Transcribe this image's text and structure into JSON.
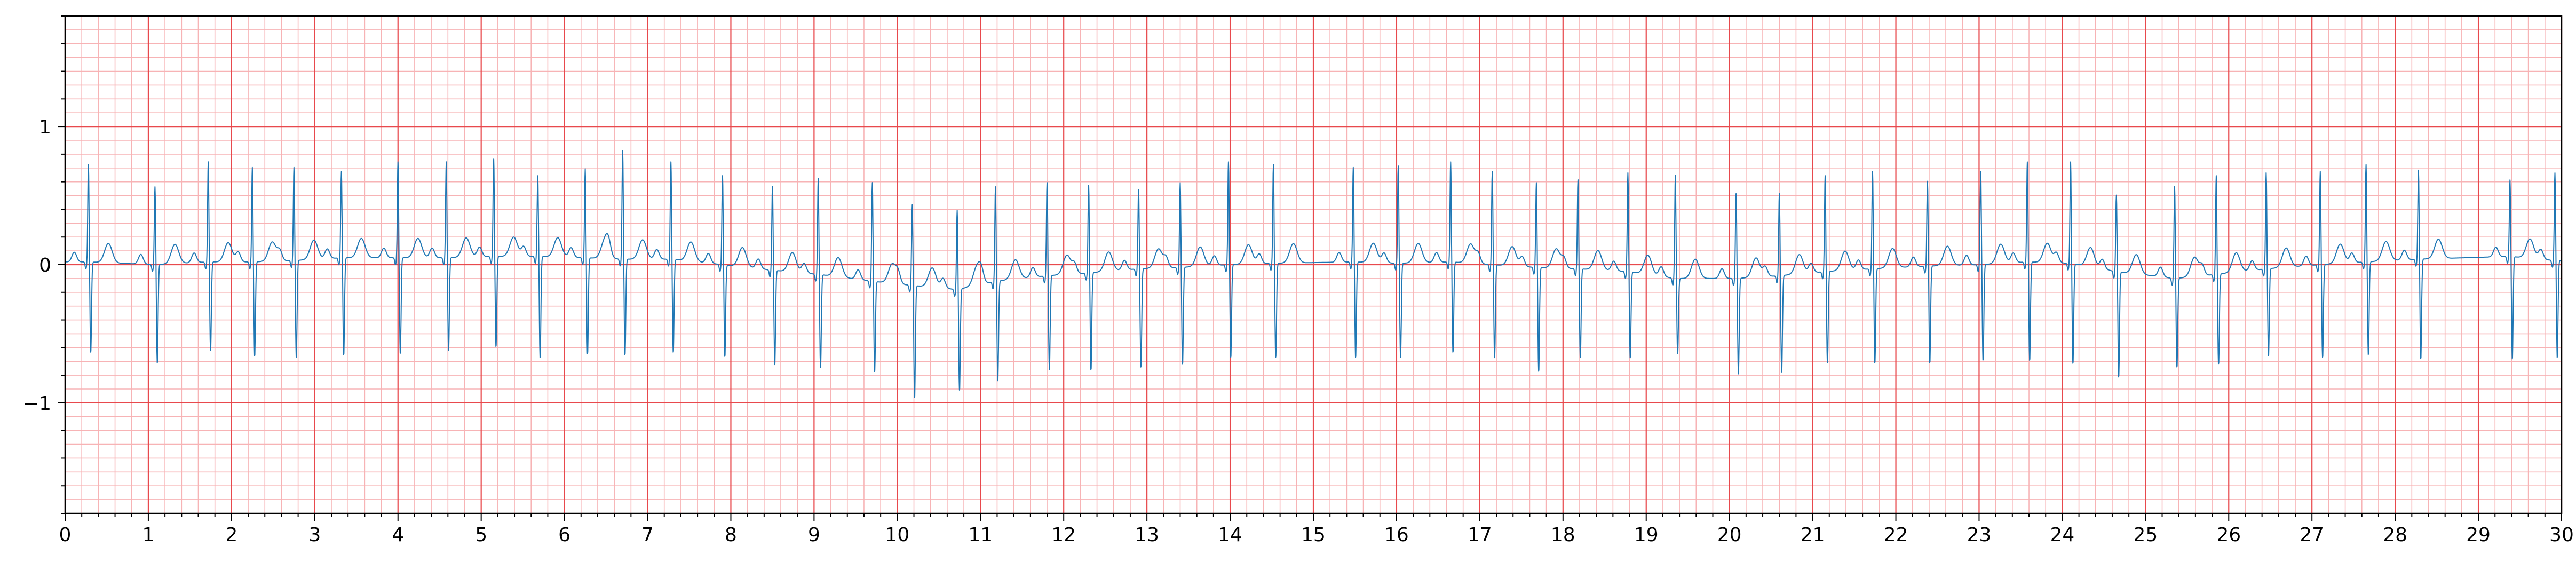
{
  "chart_data": {
    "type": "line",
    "title": "",
    "xlabel": "",
    "ylabel": "",
    "xlim": [
      0,
      30
    ],
    "ylim": [
      -1.8,
      1.8
    ],
    "grid": true,
    "grid_style": "ecg-paper",
    "colors": {
      "trace": "#1f77b4",
      "major_grid": "#e8494d",
      "minor_grid": "#f7b3b5",
      "axis": "#000000"
    },
    "x_ticks": [
      0,
      1,
      2,
      3,
      4,
      5,
      6,
      7,
      8,
      9,
      10,
      11,
      12,
      13,
      14,
      15,
      16,
      17,
      18,
      19,
      20,
      21,
      22,
      23,
      24,
      25,
      26,
      27,
      28,
      29,
      30
    ],
    "x_tick_labels": [
      "0",
      "1",
      "2",
      "3",
      "4",
      "5",
      "6",
      "7",
      "8",
      "9",
      "10",
      "11",
      "12",
      "13",
      "14",
      "15",
      "16",
      "17",
      "18",
      "19",
      "20",
      "21",
      "22",
      "23",
      "24",
      "25",
      "26",
      "27",
      "28",
      "29",
      "30"
    ],
    "y_ticks": [
      -1,
      0,
      1
    ],
    "y_tick_labels": [
      "−1",
      "0",
      "1"
    ],
    "series": [
      {
        "beats": [
          {
            "t": 0.28,
            "r": 0.68,
            "s": -0.64,
            "b": 0.02
          },
          {
            "t": 1.08,
            "r": 0.52,
            "s": -0.72,
            "b": 0.0
          },
          {
            "t": 1.72,
            "r": 0.7,
            "s": -0.63,
            "b": 0.02
          },
          {
            "t": 2.25,
            "r": 0.66,
            "s": -0.67,
            "b": 0.02
          },
          {
            "t": 2.75,
            "r": 0.66,
            "s": -0.68,
            "b": 0.03
          },
          {
            "t": 3.32,
            "r": 0.63,
            "s": -0.66,
            "b": 0.05
          },
          {
            "t": 4.0,
            "r": 0.7,
            "s": -0.65,
            "b": 0.05
          },
          {
            "t": 4.58,
            "r": 0.7,
            "s": -0.63,
            "b": 0.05
          },
          {
            "t": 5.15,
            "r": 0.72,
            "s": -0.6,
            "b": 0.06
          },
          {
            "t": 5.68,
            "r": 0.6,
            "s": -0.68,
            "b": 0.06
          },
          {
            "t": 6.25,
            "r": 0.65,
            "s": -0.65,
            "b": 0.05
          },
          {
            "t": 6.7,
            "r": 0.78,
            "s": -0.66,
            "b": 0.04
          },
          {
            "t": 7.28,
            "r": 0.7,
            "s": -0.64,
            "b": 0.04
          },
          {
            "t": 7.9,
            "r": 0.6,
            "s": -0.67,
            "b": 0.0
          },
          {
            "t": 8.5,
            "r": 0.52,
            "s": -0.73,
            "b": -0.04
          },
          {
            "t": 9.05,
            "r": 0.58,
            "s": -0.75,
            "b": -0.07
          },
          {
            "t": 9.7,
            "r": 0.55,
            "s": -0.78,
            "b": -0.12
          },
          {
            "t": 10.18,
            "r": 0.39,
            "s": -0.97,
            "b": -0.15
          },
          {
            "t": 10.72,
            "r": 0.35,
            "s": -0.92,
            "b": -0.18
          },
          {
            "t": 11.18,
            "r": 0.52,
            "s": -0.85,
            "b": -0.12
          },
          {
            "t": 11.8,
            "r": 0.55,
            "s": -0.77,
            "b": -0.08
          },
          {
            "t": 12.3,
            "r": 0.53,
            "s": -0.77,
            "b": -0.06
          },
          {
            "t": 12.9,
            "r": 0.5,
            "s": -0.75,
            "b": -0.03
          },
          {
            "t": 13.4,
            "r": 0.55,
            "s": -0.73,
            "b": -0.02
          },
          {
            "t": 13.98,
            "r": 0.7,
            "s": -0.68,
            "b": 0.0
          },
          {
            "t": 14.52,
            "r": 0.68,
            "s": -0.68,
            "b": 0.01
          },
          {
            "t": 15.48,
            "r": 0.66,
            "s": -0.68,
            "b": 0.02
          },
          {
            "t": 16.02,
            "r": 0.67,
            "s": -0.68,
            "b": 0.01
          },
          {
            "t": 16.65,
            "r": 0.7,
            "s": -0.64,
            "b": 0.02
          },
          {
            "t": 17.15,
            "r": 0.63,
            "s": -0.68,
            "b": 0.0
          },
          {
            "t": 17.68,
            "r": 0.55,
            "s": -0.78,
            "b": -0.02
          },
          {
            "t": 18.18,
            "r": 0.57,
            "s": -0.68,
            "b": -0.03
          },
          {
            "t": 18.78,
            "r": 0.62,
            "s": -0.68,
            "b": -0.05
          },
          {
            "t": 19.35,
            "r": 0.6,
            "s": -0.65,
            "b": -0.1
          },
          {
            "t": 20.08,
            "r": 0.47,
            "s": -0.8,
            "b": -0.1
          },
          {
            "t": 20.6,
            "r": 0.47,
            "s": -0.79,
            "b": -0.08
          },
          {
            "t": 21.15,
            "r": 0.6,
            "s": -0.72,
            "b": -0.05
          },
          {
            "t": 21.72,
            "r": 0.63,
            "s": -0.72,
            "b": -0.03
          },
          {
            "t": 22.38,
            "r": 0.56,
            "s": -0.72,
            "b": -0.01
          },
          {
            "t": 23.02,
            "r": 0.63,
            "s": -0.7,
            "b": 0.0
          },
          {
            "t": 23.58,
            "r": 0.7,
            "s": -0.7,
            "b": 0.02
          },
          {
            "t": 24.1,
            "r": 0.7,
            "s": -0.72,
            "b": 0.01
          },
          {
            "t": 24.65,
            "r": 0.46,
            "s": -0.82,
            "b": -0.05
          },
          {
            "t": 25.35,
            "r": 0.52,
            "s": -0.75,
            "b": -0.1
          },
          {
            "t": 25.85,
            "r": 0.6,
            "s": -0.73,
            "b": -0.07
          },
          {
            "t": 26.45,
            "r": 0.62,
            "s": -0.67,
            "b": -0.03
          },
          {
            "t": 27.1,
            "r": 0.63,
            "s": -0.68,
            "b": 0.0
          },
          {
            "t": 27.65,
            "r": 0.68,
            "s": -0.66,
            "b": 0.02
          },
          {
            "t": 28.28,
            "r": 0.64,
            "s": -0.69,
            "b": 0.04
          },
          {
            "t": 29.38,
            "r": 0.57,
            "s": -0.69,
            "b": 0.06
          },
          {
            "t": 29.92,
            "r": 0.62,
            "s": -0.68,
            "b": 0.03
          }
        ]
      }
    ]
  }
}
